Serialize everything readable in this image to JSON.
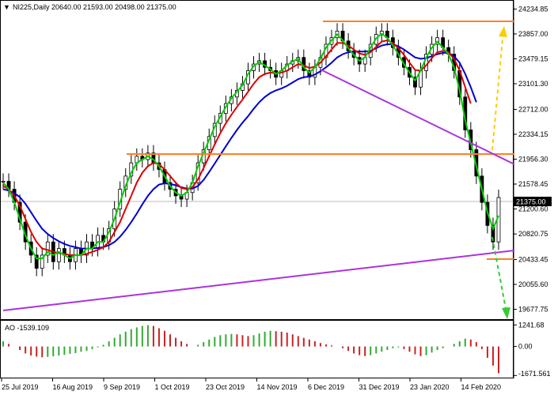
{
  "header": {
    "symbol_line": "NI225,Daily  20640.00 21593.00 20498.00 21375.00",
    "indicator_label": "AO -1539.109"
  },
  "colors": {
    "candles": "#000000",
    "ma_fast": "#00cc00",
    "ma_mid": "#dd0000",
    "ma_slow": "#0000cc",
    "resistance": "#ff7f27",
    "trendline": "#aa33dd",
    "forecast_up": "#ffcc00",
    "forecast_down": "#33cc33",
    "ao_up": "#33aa33",
    "ao_down": "#cc2222",
    "price_tag_bg": "#000000",
    "price_tag_text": "#ffffff"
  },
  "chart_data": [
    {
      "type": "candlestick",
      "title": "NI225,Daily",
      "ohlc_last": {
        "open": 20640.0,
        "high": 21593.0,
        "low": 20498.0,
        "close": 21375.0
      },
      "current_price_label": "21375.00",
      "y_ticks": [
        "24234.85",
        "23857.00",
        "23479.15",
        "23101.30",
        "22712.00",
        "22334.15",
        "21956.30",
        "21578.45",
        "21200.60",
        "20820.75",
        "20433.45",
        "20055.60",
        "19677.75"
      ],
      "ylim": [
        19600,
        24300
      ],
      "x_ticks": [
        "25 Jul 2019",
        "16 Aug 2019",
        "9 Sep 2019",
        "1 Oct 2019",
        "23 Oct 2019",
        "14 Nov 2019",
        "6 Dec 2019",
        "31 Dec 2019",
        "23 Jan 2020",
        "14 Feb 2020"
      ],
      "grid": false,
      "close_series": [
        21620,
        21500,
        21300,
        21000,
        20700,
        20500,
        20300,
        20500,
        20700,
        20400,
        20600,
        20500,
        20400,
        20600,
        20500,
        20700,
        20600,
        20800,
        20700,
        20900,
        21200,
        21500,
        21700,
        21900,
        22000,
        21950,
        22050,
        21900,
        21800,
        21600,
        21500,
        21400,
        21350,
        21450,
        21600,
        21900,
        22100,
        22300,
        22500,
        22650,
        22800,
        22900,
        23000,
        23100,
        23300,
        23400,
        23450,
        23350,
        23300,
        23200,
        23300,
        23400,
        23450,
        23500,
        23300,
        23200,
        23350,
        23500,
        23700,
        23800,
        23900,
        23750,
        23600,
        23500,
        23400,
        23500,
        23700,
        23850,
        23900,
        23800,
        23650,
        23500,
        23350,
        23200,
        23050,
        23300,
        23550,
        23700,
        23800,
        23650,
        23550,
        23300,
        22900,
        22400,
        22100,
        21700,
        21300,
        20950,
        20700,
        21375
      ],
      "ma_fast": [
        21600,
        21500,
        21300,
        21050,
        20800,
        20600,
        20450,
        20450,
        20550,
        20500,
        20550,
        20500,
        20450,
        20500,
        20500,
        20600,
        20600,
        20700,
        20700,
        20850,
        21050,
        21300,
        21550,
        21750,
        21900,
        21950,
        22000,
        21950,
        21850,
        21700,
        21550,
        21450,
        21400,
        21450,
        21600,
        21850,
        22050,
        22250,
        22450,
        22600,
        22750,
        22880,
        22980,
        23080,
        23250,
        23370,
        23430,
        23380,
        23320,
        23250,
        23300,
        23380,
        23440,
        23480,
        23350,
        23270,
        23350,
        23480,
        23650,
        23760,
        23850,
        23760,
        23640,
        23540,
        23450,
        23500,
        23650,
        23790,
        23860,
        23800,
        23680,
        23550,
        23400,
        23270,
        23150,
        23300,
        23500,
        23650,
        23740,
        23650,
        23550,
        23350,
        23000,
        22550,
        22200,
        21850,
        21500,
        21150,
        20900,
        21100
      ],
      "ma_mid": [
        21550,
        21500,
        21400,
        21250,
        21050,
        20850,
        20700,
        20600,
        20580,
        20550,
        20530,
        20520,
        20500,
        20500,
        20500,
        20520,
        20550,
        20580,
        20620,
        20700,
        20850,
        21000,
        21200,
        21400,
        21600,
        21750,
        21850,
        21900,
        21880,
        21800,
        21700,
        21600,
        21520,
        21500,
        21530,
        21650,
        21820,
        22000,
        22180,
        22350,
        22500,
        22630,
        22750,
        22860,
        22980,
        23100,
        23200,
        23250,
        23270,
        23260,
        23270,
        23300,
        23350,
        23400,
        23380,
        23340,
        23360,
        23420,
        23520,
        23620,
        23720,
        23720,
        23680,
        23620,
        23560,
        23540,
        23580,
        23660,
        23740,
        23760,
        23720,
        23640,
        23540,
        23420,
        23310,
        23300,
        23380,
        23490,
        23580,
        23600,
        23580,
        23480,
        23300,
        23050,
        22800
      ],
      "ma_slow": [
        21500,
        21480,
        21440,
        21380,
        21280,
        21150,
        21020,
        20900,
        20820,
        20760,
        20710,
        20670,
        20640,
        20620,
        20600,
        20600,
        20600,
        20610,
        20620,
        20650,
        20700,
        20780,
        20880,
        21000,
        21130,
        21270,
        21400,
        21500,
        21570,
        21590,
        21580,
        21560,
        21530,
        21510,
        21510,
        21550,
        21640,
        21760,
        21890,
        22020,
        22150,
        22280,
        22400,
        22510,
        22610,
        22720,
        22820,
        22900,
        22960,
        23000,
        23030,
        23070,
        23120,
        23170,
        23200,
        23210,
        23240,
        23290,
        23350,
        23420,
        23500,
        23550,
        23580,
        23590,
        23590,
        23590,
        23600,
        23640,
        23680,
        23700,
        23700,
        23670,
        23620,
        23560,
        23500,
        23480,
        23490,
        23520,
        23550,
        23570,
        23570,
        23520,
        23420,
        23250,
        23050,
        22820
      ]
    },
    {
      "type": "bar",
      "title": "AO -1539.109",
      "y_ticks": [
        "1241.68",
        "0.00",
        "-1671.561"
      ],
      "ylim": [
        -1700,
        1300
      ],
      "values": [
        300,
        150,
        0,
        -200,
        -400,
        -520,
        -580,
        -620,
        -600,
        -560,
        -520,
        -480,
        -420,
        -380,
        -300,
        -250,
        -150,
        -50,
        100,
        300,
        500,
        700,
        850,
        1000,
        1100,
        1180,
        1230,
        1180,
        1050,
        900,
        700,
        500,
        300,
        150,
        0,
        100,
        250,
        400,
        550,
        650,
        700,
        720,
        700,
        650,
        600,
        650,
        750,
        850,
        900,
        880,
        850,
        800,
        700,
        600,
        500,
        400,
        300,
        200,
        120,
        60,
        0,
        -100,
        -250,
        -400,
        -500,
        -550,
        -500,
        -400,
        -300,
        -200,
        -100,
        -50,
        -150,
        -300,
        -450,
        -550,
        -500,
        -350,
        -200,
        -100,
        0,
        150,
        300,
        450,
        400,
        250,
        -150,
        -650,
        -1100,
        -1539.109
      ]
    }
  ]
}
